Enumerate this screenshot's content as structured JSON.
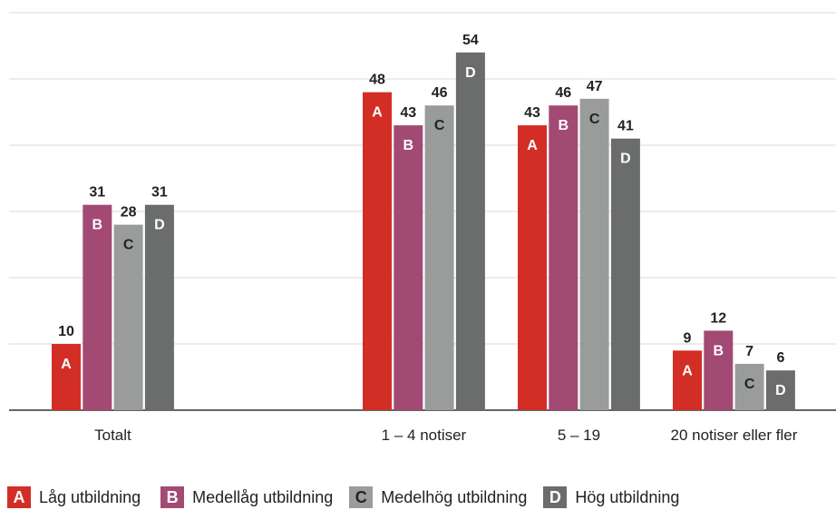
{
  "chart_data": {
    "type": "bar",
    "categories": [
      "Totalt",
      "1 – 4 notiser",
      "5 – 19",
      "20 notiser eller fler"
    ],
    "series": [
      {
        "name": "Låg utbildning",
        "letter": "A",
        "color": "#d22e26",
        "values": [
          10,
          48,
          43,
          9
        ]
      },
      {
        "name": "Medellåg utbildning",
        "letter": "B",
        "color": "#a24a74",
        "values": [
          31,
          43,
          46,
          12
        ]
      },
      {
        "name": "Medelhög utbildning",
        "letter": "C",
        "color": "#9a9c9b",
        "values": [
          28,
          46,
          47,
          7
        ]
      },
      {
        "name": "Hög utbildning",
        "letter": "D",
        "color": "#6a6d6b",
        "values": [
          31,
          54,
          41,
          6
        ]
      }
    ],
    "ylim": [
      0,
      60
    ],
    "grid": true,
    "legend": "bottom"
  }
}
